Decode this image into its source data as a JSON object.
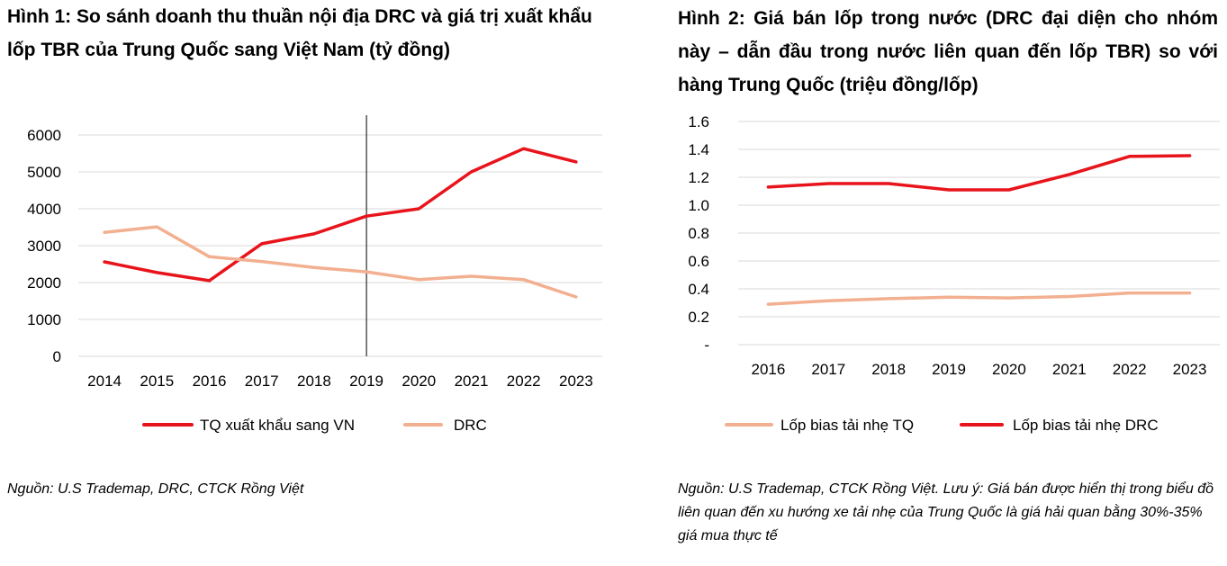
{
  "chart_data": [
    {
      "type": "line",
      "title": "Hình 1: So sánh doanh thu thuần nội địa DRC và giá trị xuất khẩu lốp TBR của Trung Quốc sang Việt Nam (tỷ đồng)",
      "categories": [
        "2014",
        "2015",
        "2016",
        "2017",
        "2018",
        "2019",
        "2020",
        "2021",
        "2022",
        "2023"
      ],
      "y_ticks": [
        "0",
        "1000",
        "2000",
        "3000",
        "4000",
        "5000",
        "6000"
      ],
      "ylim": [
        0,
        6000
      ],
      "grid": true,
      "vertical_marker_at": "2019",
      "legend_position": "bottom",
      "series": [
        {
          "name": "TQ xuất khẩu sang VN",
          "color": "#e8141b",
          "values": [
            2560,
            2270,
            2050,
            3050,
            3320,
            3800,
            4000,
            5000,
            5630,
            5270
          ]
        },
        {
          "name": "DRC",
          "color": "#f2b090",
          "values": [
            3360,
            3510,
            2700,
            2570,
            2410,
            2290,
            2080,
            2170,
            2080,
            1610
          ]
        }
      ],
      "source": "Nguồn: U.S Trademap, DRC, CTCK Rồng Việt"
    },
    {
      "type": "line",
      "title": "Hình 2: Giá bán lốp trong nước (DRC đại diện cho nhóm này – dẫn đầu trong nước liên quan đến lốp TBR) so với hàng Trung Quốc (triệu đồng/lốp)",
      "categories": [
        "2016",
        "2017",
        "2018",
        "2019",
        "2020",
        "2021",
        "2022",
        "2023"
      ],
      "y_ticks": [
        "-",
        "0.2",
        "0.4",
        "0.6",
        "0.8",
        "1.0",
        "1.2",
        "1.4",
        "1.6"
      ],
      "ylim": [
        0,
        1.6
      ],
      "grid": true,
      "legend_position": "bottom",
      "series": [
        {
          "name": "Lốp bias tải nhẹ TQ",
          "color": "#f2b090",
          "values": [
            0.29,
            0.315,
            0.33,
            0.34,
            0.335,
            0.345,
            0.37,
            0.37
          ]
        },
        {
          "name": "Lốp bias tải nhẹ DRC",
          "color": "#e8141b",
          "values": [
            1.13,
            1.155,
            1.155,
            1.11,
            1.11,
            1.22,
            1.35,
            1.355
          ]
        }
      ],
      "source": "Nguồn: U.S Trademap, CTCK Rồng Việt. Lưu ý: Giá bán được hiển thị trong biểu đồ liên quan đến xu hướng xe tải nhẹ của Trung Quốc là giá hải quan bằng 30%-35% giá mua thực tế"
    }
  ]
}
